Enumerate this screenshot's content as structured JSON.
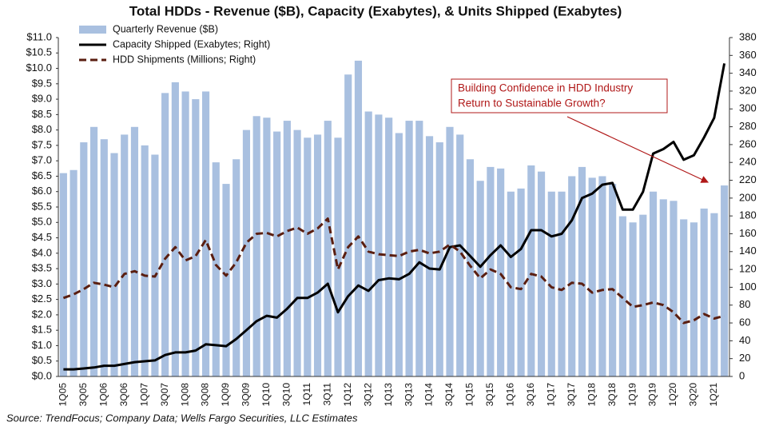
{
  "chart_data": {
    "type": "bar",
    "title": "Total HDDs -  Revenue ($B), Capacity (Exabytes), & Units Shipped (Exabytes)",
    "categories": [
      "1Q05",
      null,
      "3Q05",
      null,
      "1Q06",
      null,
      "3Q06",
      null,
      "1Q07",
      null,
      "3Q07",
      null,
      "1Q08",
      null,
      "3Q08",
      null,
      "1Q09",
      null,
      "3Q09",
      null,
      "1Q10",
      null,
      "3Q10",
      null,
      "1Q11",
      null,
      "3Q11",
      null,
      "1Q12",
      null,
      "3Q12",
      null,
      "1Q13",
      null,
      "3Q13",
      null,
      "1Q14",
      null,
      "3Q14",
      null,
      "1Q15",
      null,
      "3Q15",
      null,
      "1Q16",
      null,
      "3Q16",
      null,
      "1Q17",
      null,
      "3Q17",
      null,
      "1Q18",
      null,
      "3Q18",
      null,
      "1Q19",
      null,
      "3Q19",
      null,
      "1Q20",
      null,
      "3Q20",
      null,
      "1Q21",
      null
    ],
    "series": [
      {
        "name": "Quarterly Revenue ($B)",
        "type": "bar",
        "color": "#a9c0e0",
        "values": [
          6.6,
          6.7,
          7.6,
          8.1,
          7.7,
          7.25,
          7.85,
          8.1,
          7.5,
          7.2,
          9.2,
          9.55,
          9.25,
          9.0,
          9.25,
          6.95,
          6.25,
          7.05,
          8.0,
          8.45,
          8.4,
          7.95,
          8.3,
          8.0,
          7.75,
          7.85,
          8.3,
          7.75,
          9.8,
          10.25,
          8.6,
          8.5,
          8.4,
          7.9,
          8.3,
          8.3,
          7.8,
          7.6,
          8.1,
          7.85,
          7.05,
          6.35,
          6.8,
          6.75,
          6.0,
          6.1,
          6.85,
          6.65,
          6.0,
          6.0,
          6.5,
          6.8,
          6.45,
          6.5,
          6.25,
          5.2,
          5.0,
          5.25,
          6.0,
          5.75,
          5.7,
          5.1,
          5.0,
          5.45,
          5.3,
          6.2
        ]
      },
      {
        "name": "Capacity Shipped (Exabytes; Right)",
        "type": "line",
        "axis": "y2",
        "color": "#000000",
        "line_style": "solid",
        "values": [
          8,
          8,
          9,
          10,
          12,
          12,
          14,
          16,
          17,
          18,
          24,
          27,
          27,
          29,
          36,
          35,
          34,
          42,
          52,
          62,
          68,
          66,
          76,
          88,
          88,
          94,
          104,
          72,
          90,
          102,
          96,
          108,
          110,
          109,
          115,
          128,
          121,
          120,
          145,
          147,
          135,
          123,
          136,
          147,
          134,
          143,
          164,
          164,
          157,
          160,
          175,
          200,
          205,
          215,
          217,
          187,
          187,
          207,
          250,
          255,
          263,
          243,
          248,
          268,
          290,
          351
        ]
      },
      {
        "name": "HDD Shipments (Millions; Right)",
        "type": "line",
        "axis": "y2",
        "color": "#5a1e10",
        "line_style": "dashed",
        "values": [
          88,
          92,
          98,
          105,
          103,
          100,
          115,
          118,
          113,
          112,
          132,
          145,
          130,
          135,
          153,
          125,
          113,
          128,
          150,
          160,
          161,
          157,
          163,
          167,
          160,
          166,
          177,
          120,
          145,
          157,
          140,
          137,
          136,
          135,
          140,
          142,
          138,
          140,
          148,
          140,
          124,
          110,
          120,
          115,
          100,
          98,
          115,
          112,
          100,
          97,
          105,
          104,
          94,
          97,
          98,
          88,
          78,
          80,
          83,
          80,
          72,
          60,
          63,
          70,
          65,
          68
        ]
      }
    ],
    "ylim": [
      0,
      11
    ],
    "yticks": [
      {
        "value": 0,
        "label": "$0.0"
      },
      {
        "value": 0.5,
        "label": "$0.5"
      },
      {
        "value": 1,
        "label": "$1.0"
      },
      {
        "value": 1.5,
        "label": "$1.5"
      },
      {
        "value": 2,
        "label": "$2.0"
      },
      {
        "value": 2.5,
        "label": "$2.5"
      },
      {
        "value": 3,
        "label": "$3.0"
      },
      {
        "value": 3.5,
        "label": "$3.5"
      },
      {
        "value": 4,
        "label": "$4.0"
      },
      {
        "value": 4.5,
        "label": "$4.5"
      },
      {
        "value": 5,
        "label": "$5.0"
      },
      {
        "value": 5.5,
        "label": "$5.5"
      },
      {
        "value": 6,
        "label": "$6.0"
      },
      {
        "value": 6.5,
        "label": "$6.5"
      },
      {
        "value": 7,
        "label": "$7.0"
      },
      {
        "value": 7.5,
        "label": "$7.5"
      },
      {
        "value": 8,
        "label": "$8.0"
      },
      {
        "value": 8.5,
        "label": "$8.5"
      },
      {
        "value": 9,
        "label": "$9.0"
      },
      {
        "value": 9.5,
        "label": "$9.5"
      },
      {
        "value": 10,
        "label": "$10.0"
      },
      {
        "value": 10.5,
        "label": "$10.5"
      },
      {
        "value": 11,
        "label": "$11.0"
      }
    ],
    "y2lim": [
      0,
      380
    ],
    "y2ticks": [
      0,
      20,
      40,
      60,
      80,
      100,
      120,
      140,
      160,
      180,
      200,
      220,
      240,
      260,
      280,
      300,
      320,
      340,
      360,
      380
    ],
    "legend": "upper-left",
    "annotation": {
      "lines": [
        "Building Confidence in HDD Industry",
        "Return to Sustainable Growth?"
      ],
      "color": "#b01818"
    },
    "source": "Source:  TrendFocus; Company Data; Wells Fargo Securities, LLC Estimates"
  }
}
